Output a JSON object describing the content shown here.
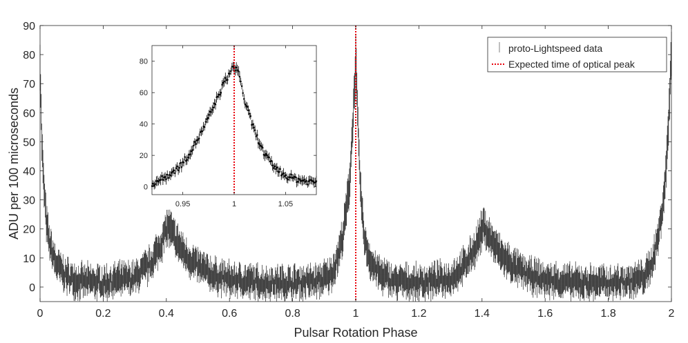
{
  "chart_data": [
    {
      "type": "line",
      "title": "",
      "xlabel": "Pulsar Rotation Phase",
      "ylabel": "ADU per 100 microseconds",
      "xlim": [
        0,
        2
      ],
      "ylim": [
        -5,
        90
      ],
      "xticks": [
        0,
        0.2,
        0.4,
        0.6,
        0.8,
        1,
        1.2,
        1.4,
        1.6,
        1.8,
        2
      ],
      "xtick_labels": [
        "0",
        "0.2",
        "0.4",
        "0.6",
        "0.8",
        "1",
        "1.2",
        "1.4",
        "1.6",
        "1.8",
        "2"
      ],
      "yticks": [
        0,
        10,
        20,
        30,
        40,
        50,
        60,
        70,
        80,
        90
      ],
      "ytick_labels": [
        "0",
        "10",
        "20",
        "30",
        "40",
        "50",
        "60",
        "70",
        "80",
        "90"
      ],
      "grid": false,
      "legend_position": "top-right",
      "series": [
        {
          "name": "proto-Lightspeed data",
          "style": "vertical error bars",
          "color": "#333333",
          "x_range": [
            0,
            2
          ],
          "profile_points": [
            [
              0,
              78
            ],
            [
              0.005,
              52
            ],
            [
              0.01,
              38
            ],
            [
              0.02,
              22
            ],
            [
              0.03,
              15
            ],
            [
              0.05,
              8
            ],
            [
              0.08,
              4
            ],
            [
              0.12,
              2
            ],
            [
              0.2,
              1.5
            ],
            [
              0.3,
              3
            ],
            [
              0.35,
              8
            ],
            [
              0.38,
              14
            ],
            [
              0.405,
              21
            ],
            [
              0.43,
              16
            ],
            [
              0.46,
              11
            ],
            [
              0.5,
              7
            ],
            [
              0.55,
              4
            ],
            [
              0.6,
              2.5
            ],
            [
              0.7,
              1.5
            ],
            [
              0.8,
              1.5
            ],
            [
              0.88,
              2
            ],
            [
              0.92,
              4
            ],
            [
              0.94,
              9
            ],
            [
              0.96,
              18
            ],
            [
              0.98,
              35
            ],
            [
              0.99,
              55
            ],
            [
              1.0,
              78
            ],
            [
              1.005,
              62
            ],
            [
              1.01,
              45
            ],
            [
              1.02,
              25
            ],
            [
              1.03,
              15
            ],
            [
              1.05,
              8
            ],
            [
              1.08,
              4
            ],
            [
              1.12,
              2
            ],
            [
              1.2,
              1.5
            ],
            [
              1.3,
              3
            ],
            [
              1.35,
              8
            ],
            [
              1.38,
              14
            ],
            [
              1.405,
              21
            ],
            [
              1.43,
              16
            ],
            [
              1.46,
              11
            ],
            [
              1.5,
              7
            ],
            [
              1.55,
              4
            ],
            [
              1.6,
              2.5
            ],
            [
              1.7,
              1.5
            ],
            [
              1.8,
              1.5
            ],
            [
              1.88,
              2
            ],
            [
              1.92,
              4
            ],
            [
              1.94,
              9
            ],
            [
              1.96,
              18
            ],
            [
              1.98,
              35
            ],
            [
              1.99,
              55
            ],
            [
              2.0,
              80
            ]
          ]
        },
        {
          "name": "Expected time of optical peak",
          "style": "dotted vertical line",
          "color": "#e8000b",
          "x": 1
        }
      ]
    },
    {
      "type": "line",
      "title": "",
      "xlabel": "",
      "ylabel": "",
      "xlim": [
        0.92,
        1.08
      ],
      "ylim": [
        -5,
        90
      ],
      "xticks": [
        0.95,
        1,
        1.05
      ],
      "xtick_labels": [
        "0.95",
        "1",
        "1.05"
      ],
      "yticks": [
        0,
        20,
        40,
        60,
        80
      ],
      "ytick_labels": [
        "0",
        "20",
        "40",
        "60",
        "80"
      ],
      "grid": false,
      "series": [
        {
          "name": "proto-Lightspeed data",
          "style": "points with error bars",
          "color": "#000000",
          "profile_points": [
            [
              0.92,
              2
            ],
            [
              0.93,
              5
            ],
            [
              0.94,
              9
            ],
            [
              0.95,
              15
            ],
            [
              0.96,
              25
            ],
            [
              0.97,
              37
            ],
            [
              0.98,
              51
            ],
            [
              0.99,
              66
            ],
            [
              1.0,
              77
            ],
            [
              1.005,
              72
            ],
            [
              1.01,
              55
            ],
            [
              1.02,
              35
            ],
            [
              1.03,
              20
            ],
            [
              1.04,
              12
            ],
            [
              1.05,
              7
            ],
            [
              1.06,
              5
            ],
            [
              1.07,
              3.5
            ],
            [
              1.08,
              3
            ]
          ]
        },
        {
          "name": "Expected time of optical peak",
          "style": "dotted vertical line",
          "color": "#e8000b",
          "x": 1
        }
      ]
    }
  ],
  "legend": {
    "entries": [
      {
        "label": "proto-Lightspeed data",
        "symbol": "|",
        "color": "#7f7f7f"
      },
      {
        "label": "Expected time of optical peak",
        "color": "#e8000b"
      }
    ]
  }
}
